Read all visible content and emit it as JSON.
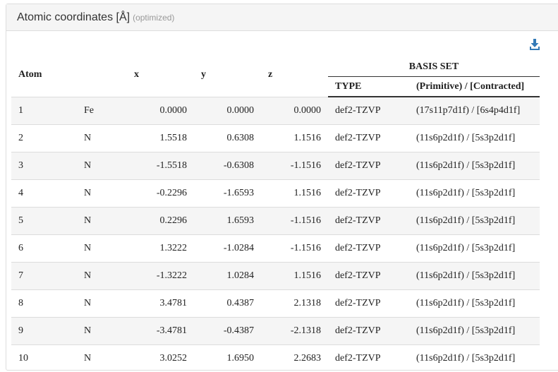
{
  "panel": {
    "title": "Atomic coordinates [Å]",
    "subtitle": "(optimized)",
    "download_icon": "download-icon"
  },
  "table": {
    "headers": {
      "atom": "Atom",
      "x": "x",
      "y": "y",
      "z": "z",
      "basis_set": "BASIS SET",
      "type": "TYPE",
      "contraction": "(Primitive) / [Contracted]"
    },
    "rows": [
      {
        "atom": "1",
        "element": "Fe",
        "x": "0.0000",
        "y": "0.0000",
        "z": "0.0000",
        "type": "def2-TZVP",
        "basis": "(17s11p7d1f) / [6s4p4d1f]"
      },
      {
        "atom": "2",
        "element": "N",
        "x": "1.5518",
        "y": "0.6308",
        "z": "1.1516",
        "type": "def2-TZVP",
        "basis": "(11s6p2d1f) / [5s3p2d1f]"
      },
      {
        "atom": "3",
        "element": "N",
        "x": "-1.5518",
        "y": "-0.6308",
        "z": "-1.1516",
        "type": "def2-TZVP",
        "basis": "(11s6p2d1f) / [5s3p2d1f]"
      },
      {
        "atom": "4",
        "element": "N",
        "x": "-0.2296",
        "y": "-1.6593",
        "z": "1.1516",
        "type": "def2-TZVP",
        "basis": "(11s6p2d1f) / [5s3p2d1f]"
      },
      {
        "atom": "5",
        "element": "N",
        "x": "0.2296",
        "y": "1.6593",
        "z": "-1.1516",
        "type": "def2-TZVP",
        "basis": "(11s6p2d1f) / [5s3p2d1f]"
      },
      {
        "atom": "6",
        "element": "N",
        "x": "1.3222",
        "y": "-1.0284",
        "z": "-1.1516",
        "type": "def2-TZVP",
        "basis": "(11s6p2d1f) / [5s3p2d1f]"
      },
      {
        "atom": "7",
        "element": "N",
        "x": "-1.3222",
        "y": "1.0284",
        "z": "1.1516",
        "type": "def2-TZVP",
        "basis": "(11s6p2d1f) / [5s3p2d1f]"
      },
      {
        "atom": "8",
        "element": "N",
        "x": "3.4781",
        "y": "0.4387",
        "z": "2.1318",
        "type": "def2-TZVP",
        "basis": "(11s6p2d1f) / [5s3p2d1f]"
      },
      {
        "atom": "9",
        "element": "N",
        "x": "-3.4781",
        "y": "-0.4387",
        "z": "-2.1318",
        "type": "def2-TZVP",
        "basis": "(11s6p2d1f) / [5s3p2d1f]"
      },
      {
        "atom": "10",
        "element": "N",
        "x": "3.0252",
        "y": "1.6950",
        "z": "2.2683",
        "type": "def2-TZVP",
        "basis": "(11s6p2d1f) / [5s3p2d1f]"
      }
    ]
  },
  "colors": {
    "download_icon": "#337ab7",
    "heading_bg": "#f5f5f5",
    "stripe_bg": "#f5f5f5"
  }
}
